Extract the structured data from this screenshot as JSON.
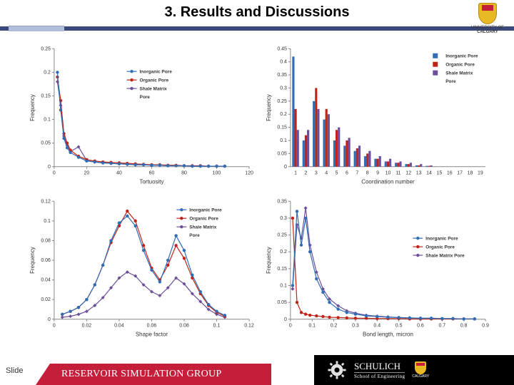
{
  "title": "3. Results and Discussions",
  "logo_label": "UNIVERSITY OF",
  "logo_name": "CALGARY",
  "footer": {
    "slide_label": "Slide",
    "group": "RESERVOIR SIMULATION GROUP",
    "schulich": "SCHULICH",
    "schulich_sub": "School of Engineering"
  },
  "colors": {
    "inorganic": "#2f6db5",
    "organic": "#c02418",
    "shale": "#6b4f9a",
    "axis": "#888888",
    "bg": "#ffffff"
  },
  "legend_labels": {
    "inorganic": "Inorganic Pore",
    "organic": "Organic Pore",
    "shale": "Shale Matrix Pore"
  },
  "chart_tl": {
    "type": "line",
    "xlabel": "Tortuosity",
    "ylabel": "Frequency",
    "xlim": [
      0,
      120
    ],
    "xticks": [
      0,
      20,
      40,
      60,
      80,
      100,
      120
    ],
    "ylim": [
      0,
      0.25
    ],
    "yticks": [
      0,
      0.05,
      0.1,
      0.15,
      0.2,
      0.25
    ],
    "x": [
      2,
      4,
      6,
      8,
      10,
      15,
      20,
      25,
      30,
      35,
      40,
      45,
      50,
      55,
      60,
      65,
      70,
      75,
      80,
      85,
      90,
      95,
      100,
      105
    ],
    "inorganic": [
      0.2,
      0.12,
      0.06,
      0.04,
      0.03,
      0.02,
      0.012,
      0.01,
      0.008,
      0.007,
      0.006,
      0.005,
      0.004,
      0.004,
      0.003,
      0.003,
      0.002,
      0.002,
      0.002,
      0.001,
      0.001,
      0.001,
      0.001,
      0.001
    ],
    "organic": [
      0.19,
      0.14,
      0.07,
      0.05,
      0.035,
      0.022,
      0.015,
      0.012,
      0.01,
      0.009,
      0.008,
      0.007,
      0.006,
      0.005,
      0.004,
      0.004,
      0.003,
      0.003,
      0.002,
      0.002,
      0.002,
      0.001,
      0.001,
      0.001
    ],
    "shale": [
      0.18,
      0.13,
      0.065,
      0.045,
      0.032,
      0.042,
      0.013,
      0.01,
      0.008,
      0.007,
      0.006,
      0.005,
      0.004,
      0.004,
      0.003,
      0.003,
      0.002,
      0.002,
      0.002,
      0.001,
      0.001,
      0.001,
      0.001,
      0.001
    ]
  },
  "chart_tr": {
    "type": "bar",
    "xlabel": "Coordination number",
    "ylabel": "Frequency",
    "xlim": [
      1,
      19
    ],
    "xticks": [
      1,
      2,
      3,
      4,
      5,
      6,
      7,
      8,
      9,
      10,
      11,
      12,
      13,
      14,
      15,
      16,
      17,
      18,
      19
    ],
    "ylim": [
      0,
      0.45
    ],
    "yticks": [
      0,
      0.05,
      0.1,
      0.15,
      0.2,
      0.25,
      0.3,
      0.35,
      0.4,
      0.45
    ],
    "categories": [
      1,
      2,
      3,
      4,
      5,
      6,
      7,
      8,
      9,
      10,
      11,
      12,
      13,
      14
    ],
    "inorganic": [
      0.42,
      0.1,
      0.25,
      0.18,
      0.1,
      0.08,
      0.06,
      0.04,
      0.03,
      0.02,
      0.015,
      0.01,
      0.005,
      0.003
    ],
    "organic": [
      0.22,
      0.12,
      0.3,
      0.22,
      0.14,
      0.1,
      0.07,
      0.05,
      0.03,
      0.02,
      0.015,
      0.01,
      0.005,
      0.003
    ],
    "shale": [
      0.14,
      0.14,
      0.22,
      0.2,
      0.15,
      0.11,
      0.08,
      0.06,
      0.04,
      0.03,
      0.02,
      0.015,
      0.01,
      0.005
    ]
  },
  "chart_bl": {
    "type": "line",
    "xlabel": "Shape factor",
    "ylabel": "Frequency",
    "xlim": [
      0,
      0.12
    ],
    "xticks": [
      0,
      0.02,
      0.04,
      0.06,
      0.08,
      0.1,
      0.12
    ],
    "ylim": [
      0,
      0.12
    ],
    "yticks": [
      0,
      0.02,
      0.04,
      0.06,
      0.08,
      0.1,
      0.12
    ],
    "x": [
      0.005,
      0.01,
      0.015,
      0.02,
      0.025,
      0.03,
      0.035,
      0.04,
      0.045,
      0.05,
      0.055,
      0.06,
      0.065,
      0.07,
      0.075,
      0.08,
      0.085,
      0.09,
      0.095,
      0.1,
      0.105
    ],
    "inorganic": [
      0.005,
      0.008,
      0.012,
      0.02,
      0.035,
      0.055,
      0.08,
      0.098,
      0.105,
      0.095,
      0.07,
      0.05,
      0.038,
      0.06,
      0.085,
      0.07,
      0.045,
      0.028,
      0.015,
      0.008,
      0.004
    ],
    "organic": [
      0.005,
      0.008,
      0.012,
      0.02,
      0.035,
      0.055,
      0.078,
      0.095,
      0.11,
      0.1,
      0.075,
      0.052,
      0.04,
      0.055,
      0.075,
      0.062,
      0.042,
      0.026,
      0.014,
      0.007,
      0.003
    ],
    "shale": [
      0.002,
      0.003,
      0.005,
      0.008,
      0.014,
      0.022,
      0.032,
      0.042,
      0.048,
      0.044,
      0.035,
      0.028,
      0.024,
      0.032,
      0.042,
      0.036,
      0.026,
      0.018,
      0.01,
      0.005,
      0.002
    ]
  },
  "chart_br": {
    "type": "line",
    "xlabel": "Bond length, micron",
    "ylabel": "Frequency",
    "xlim": [
      0,
      0.9
    ],
    "xticks": [
      0,
      0.1,
      0.2,
      0.3,
      0.4,
      0.5,
      0.6,
      0.7,
      0.8,
      0.9
    ],
    "ylim": [
      0,
      0.35
    ],
    "yticks": [
      0,
      0.05,
      0.1,
      0.15,
      0.2,
      0.25,
      0.3,
      0.35
    ],
    "x": [
      0.01,
      0.03,
      0.05,
      0.07,
      0.09,
      0.12,
      0.15,
      0.18,
      0.22,
      0.26,
      0.3,
      0.35,
      0.4,
      0.45,
      0.5,
      0.55,
      0.6,
      0.65,
      0.7,
      0.75,
      0.8,
      0.85
    ],
    "inorganic": [
      0.1,
      0.32,
      0.22,
      0.3,
      0.2,
      0.12,
      0.08,
      0.05,
      0.03,
      0.02,
      0.015,
      0.01,
      0.008,
      0.006,
      0.005,
      0.004,
      0.003,
      0.003,
      0.002,
      0.002,
      0.001,
      0.001
    ],
    "organic": [
      0.3,
      0.05,
      0.02,
      0.015,
      0.012,
      0.01,
      0.008,
      0.006,
      0.005,
      0.004,
      0.003,
      0.003,
      0.002,
      0.002,
      0.002,
      0.001,
      0.001,
      0.001,
      0.001,
      0.001,
      0.001,
      0.001
    ],
    "shale": [
      0.09,
      0.28,
      0.24,
      0.33,
      0.22,
      0.14,
      0.09,
      0.06,
      0.04,
      0.025,
      0.018,
      0.012,
      0.009,
      0.007,
      0.005,
      0.004,
      0.003,
      0.003,
      0.002,
      0.002,
      0.001,
      0.001
    ]
  }
}
